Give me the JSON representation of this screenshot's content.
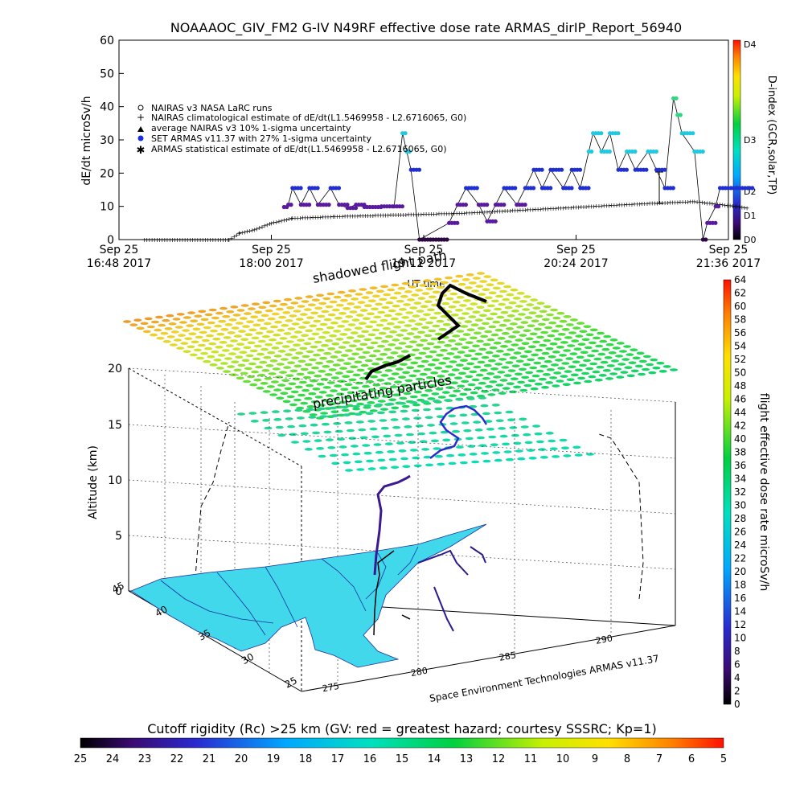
{
  "title": "NOAAAOC_GIV_FM2 G-IV    N49RF   effective dose rate ARMAS_dirIP_Report_56940",
  "chart_data": [
    {
      "type": "scatter",
      "ylabel": "dE/dt microSv/h",
      "xlabel": "UT time",
      "ylim": [
        0,
        60
      ],
      "yticks": [
        "0",
        "10",
        "20",
        "30",
        "40",
        "50",
        "60"
      ],
      "xticks": [
        {
          "date": "Sep 25",
          "time": "16:48 2017"
        },
        {
          "date": "Sep 25",
          "time": "18:00 2017"
        },
        {
          "date": "Sep 25",
          "time": "19:12 2017"
        },
        {
          "date": "Sep 25",
          "time": "20:24 2017"
        },
        {
          "date": "Sep 25",
          "time": "21:36 2017"
        }
      ],
      "xlim": [
        "16:48",
        "21:36"
      ],
      "legend": [
        "NAIRAS v3 NASA LaRC runs",
        "NAIRAS climatological estimate of dE/dt(L1.5469958 - L2.6716065, G0)",
        "average NAIRAS v3 10% 1-sigma uncertainty",
        "SET ARMAS v11.37 with 27% 1-sigma uncertainty",
        "ARMAS statistical estimate of dE/dt(L1.5469958 - L2.6716065, G0)"
      ],
      "legend_position": "left",
      "right_axis_label": "D-index (GCR,solar,TP)",
      "right_axis_ticks": [
        "D0",
        "D1",
        "D2",
        "D3",
        "D4"
      ],
      "series": [
        {
          "name": "SET ARMAS v11.37 with 27% 1-sigma uncertainty",
          "points": [
            [
              "18:06",
              9.8
            ],
            [
              "18:08",
              10.5
            ],
            [
              "18:10",
              15.5
            ],
            [
              "18:14",
              10.5
            ],
            [
              "18:18",
              15.5
            ],
            [
              "18:22",
              10.5
            ],
            [
              "18:28",
              15.5
            ],
            [
              "18:32",
              10.5
            ],
            [
              "18:36",
              9.5
            ],
            [
              "18:40",
              10.5
            ],
            [
              "18:44",
              9.8
            ],
            [
              "18:52",
              10.0
            ],
            [
              "18:58",
              10.0
            ],
            [
              "19:02",
              32.0
            ],
            [
              "19:04",
              26.5
            ],
            [
              "19:06",
              21.0
            ],
            [
              "19:10",
              0.0
            ],
            [
              "19:24",
              5.0
            ],
            [
              "19:28",
              10.5
            ],
            [
              "19:32",
              15.5
            ],
            [
              "19:38",
              10.5
            ],
            [
              "19:42",
              5.5
            ],
            [
              "19:46",
              10.5
            ],
            [
              "19:50",
              15.5
            ],
            [
              "19:56",
              10.5
            ],
            [
              "20:00",
              15.5
            ],
            [
              "20:04",
              21.0
            ],
            [
              "20:08",
              15.5
            ],
            [
              "20:12",
              21.0
            ],
            [
              "20:18",
              15.5
            ],
            [
              "20:22",
              21.0
            ],
            [
              "20:26",
              15.5
            ],
            [
              "20:30",
              26.5
            ],
            [
              "20:32",
              32.0
            ],
            [
              "20:36",
              26.5
            ],
            [
              "20:40",
              32.0
            ],
            [
              "20:44",
              21.0
            ],
            [
              "20:48",
              26.5
            ],
            [
              "20:52",
              21.0
            ],
            [
              "20:58",
              26.5
            ],
            [
              "21:02",
              21.0
            ],
            [
              "21:06",
              15.5
            ],
            [
              "21:10",
              42.5
            ],
            [
              "21:12",
              37.5
            ],
            [
              "21:14",
              32.0
            ],
            [
              "21:20",
              26.5
            ],
            [
              "21:24",
              0.0
            ],
            [
              "21:26",
              5.0
            ],
            [
              "21:30",
              10.0
            ],
            [
              "21:32",
              15.5
            ],
            [
              "21:40",
              15.5
            ],
            [
              "21:46",
              15.5
            ]
          ]
        },
        {
          "name": "NAIRAS climatological estimate of dE/dt(L1.5469958 - L2.6716065, G0)",
          "points": [
            [
              "17:00",
              0.0
            ],
            [
              "17:40",
              0.0
            ],
            [
              "17:45",
              2.0
            ],
            [
              "17:52",
              3.0
            ],
            [
              "18:00",
              5.0
            ],
            [
              "18:10",
              6.5
            ],
            [
              "18:30",
              7.0
            ],
            [
              "19:00",
              7.5
            ],
            [
              "19:30",
              8.0
            ],
            [
              "20:00",
              9.0
            ],
            [
              "20:30",
              10.0
            ],
            [
              "21:00",
              11.0
            ],
            [
              "21:20",
              11.5
            ],
            [
              "21:40",
              10.0
            ],
            [
              "21:46",
              9.5
            ]
          ]
        }
      ]
    },
    {
      "type": "scatter",
      "zlabel": "Altitude (km)",
      "zticks": [
        "0",
        "5",
        "10",
        "15",
        "20"
      ],
      "lat_ticks": [
        "45",
        "40",
        "35",
        "30",
        "25"
      ],
      "lon_ticks": [
        "275",
        "280",
        "285",
        "290"
      ],
      "colorbar_label": "flight effective dose rate microSv/h",
      "colorbar_ticks": [
        "0",
        "2",
        "4",
        "6",
        "8",
        "10",
        "12",
        "14",
        "16",
        "18",
        "20",
        "22",
        "24",
        "26",
        "28",
        "30",
        "32",
        "34",
        "36",
        "38",
        "40",
        "42",
        "44",
        "46",
        "48",
        "50",
        "52",
        "54",
        "56",
        "58",
        "60",
        "62",
        "64"
      ],
      "annotations": [
        "shadowed flight path",
        "precipitating particles"
      ],
      "credit": "Space Environment Technologies ARMAS v11.37"
    },
    {
      "type": "heatmap",
      "title": "Cutoff rigidity (Rc) >25 km (GV: red = greatest hazard; courtesy SSSRC; Kp=1)",
      "ticks": [
        "25",
        "24",
        "23",
        "22",
        "21",
        "20",
        "19",
        "18",
        "17",
        "16",
        "15",
        "14",
        "13",
        "12",
        "11",
        "10",
        "9",
        "8",
        "7",
        "6",
        "5"
      ]
    }
  ]
}
